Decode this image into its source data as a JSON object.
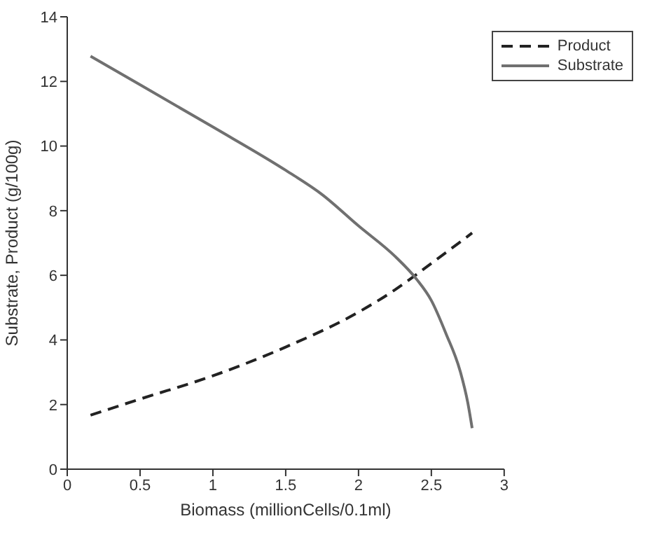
{
  "chart_data": {
    "type": "line",
    "xlabel": "Biomass (millionCells/0.1ml)",
    "ylabel": "Substrate, Product (g/100g)",
    "xlim": [
      0,
      3
    ],
    "xticks": [
      0,
      0.5,
      1,
      1.5,
      2,
      2.5,
      3
    ],
    "ylim": [
      0,
      14
    ],
    "yticks": [
      0,
      2,
      4,
      6,
      8,
      10,
      12,
      14
    ],
    "legend": "top right",
    "grid": false,
    "marker": "none",
    "series": [
      {
        "name": "Product",
        "color": "#222222",
        "line_style": "dashed",
        "x": [
          0.16,
          0.5,
          1,
          1.5,
          2,
          2.25,
          2.5,
          2.78
        ],
        "values": [
          1.67,
          2.17,
          2.89,
          3.78,
          4.86,
          5.55,
          6.37,
          7.31
        ]
      },
      {
        "name": "Substrate",
        "color": "#707070",
        "line_style": "solid",
        "x": [
          0.16,
          0.5,
          1,
          1.5,
          1.75,
          2,
          2.25,
          2.4,
          2.5,
          2.6,
          2.7,
          2.75,
          2.78
        ],
        "values": [
          12.78,
          11.9,
          10.59,
          9.25,
          8.5,
          7.53,
          6.59,
          5.87,
          5.22,
          4.2,
          3.0,
          2.06,
          1.27
        ]
      }
    ]
  }
}
